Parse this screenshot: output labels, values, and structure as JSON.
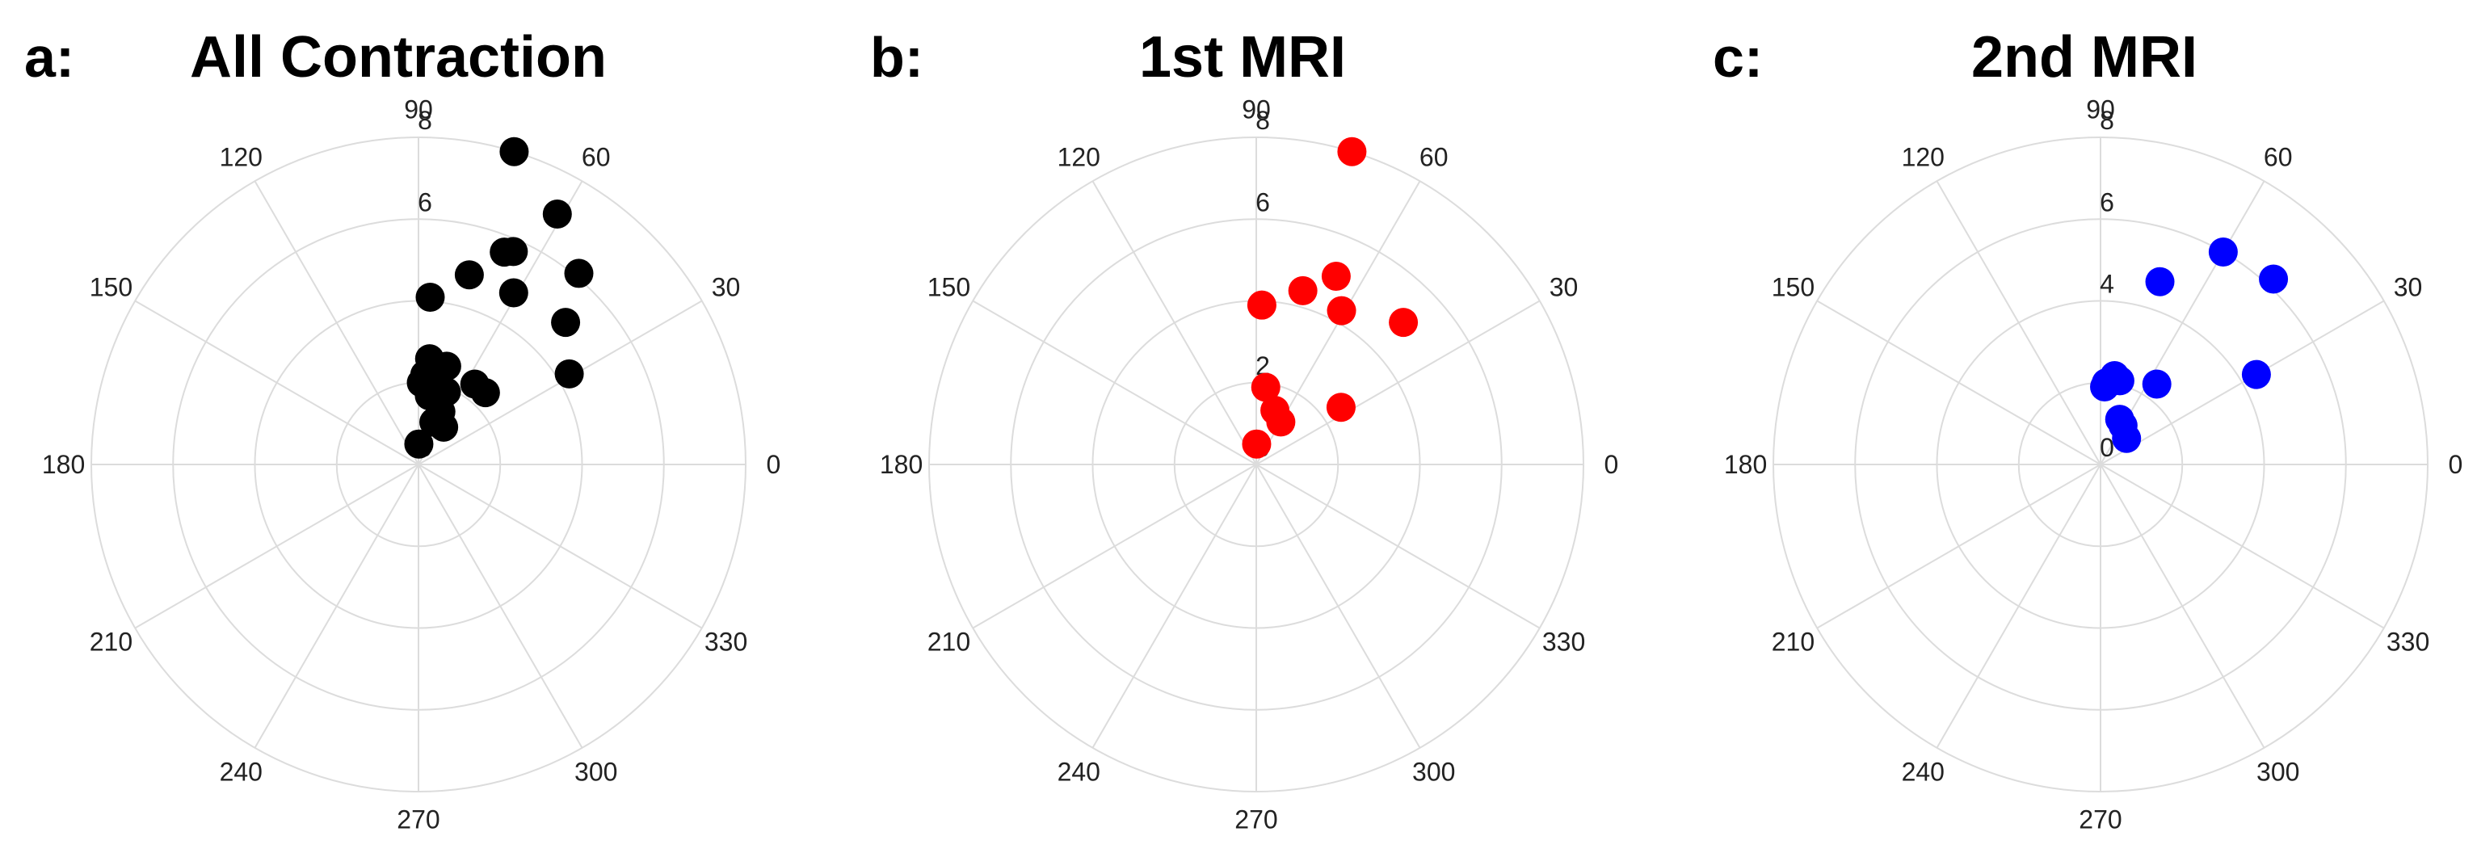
{
  "chart_data": [
    {
      "type": "scatter",
      "coordinate_system": "polar",
      "panel_letter": "a:",
      "title": "All Contraction",
      "marker_color": "#000000",
      "angle_unit": "degrees",
      "angle_ticks": [
        "0",
        "30",
        "60",
        "90",
        "120",
        "150",
        "180",
        "210",
        "240",
        "270",
        "300",
        "330"
      ],
      "radial_ticks": [
        "0",
        "6",
        "8"
      ],
      "rlim": [
        0,
        8
      ],
      "grid": true,
      "legend": "none",
      "points": [
        {
          "theta": 73,
          "r": 8.0
        },
        {
          "theta": 61,
          "r": 7.0
        },
        {
          "theta": 50,
          "r": 6.1
        },
        {
          "theta": 66,
          "r": 5.7
        },
        {
          "theta": 68,
          "r": 5.6
        },
        {
          "theta": 75,
          "r": 4.8
        },
        {
          "theta": 61,
          "r": 4.8
        },
        {
          "theta": 44,
          "r": 5.0
        },
        {
          "theta": 86,
          "r": 4.1
        },
        {
          "theta": 31,
          "r": 4.3
        },
        {
          "theta": 55,
          "r": 2.4
        },
        {
          "theta": 47,
          "r": 2.4
        },
        {
          "theta": 74,
          "r": 2.5
        },
        {
          "theta": 80,
          "r": 2.3
        },
        {
          "theta": 86,
          "r": 2.2
        },
        {
          "theta": 88,
          "r": 2.0
        },
        {
          "theta": 69,
          "r": 1.9
        },
        {
          "theta": 81,
          "r": 1.7
        },
        {
          "theta": 67,
          "r": 1.4
        },
        {
          "theta": 70,
          "r": 1.1
        },
        {
          "theta": 56,
          "r": 1.1
        },
        {
          "theta": 89,
          "r": 0.5
        },
        {
          "theta": 77,
          "r": 1.8
        },
        {
          "theta": 84,
          "r": 2.6
        }
      ]
    },
    {
      "type": "scatter",
      "coordinate_system": "polar",
      "panel_letter": "b:",
      "title": "1st MRI",
      "marker_color": "#ff0000",
      "angle_unit": "degrees",
      "angle_ticks": [
        "0",
        "30",
        "60",
        "90",
        "120",
        "150",
        "180",
        "210",
        "240",
        "270",
        "300",
        "330"
      ],
      "radial_ticks": [
        "0",
        "2",
        "6",
        "8"
      ],
      "rlim": [
        0,
        8
      ],
      "grid": true,
      "legend": "none",
      "points": [
        {
          "theta": 73,
          "r": 8.0
        },
        {
          "theta": 67,
          "r": 5.0
        },
        {
          "theta": 75,
          "r": 4.4
        },
        {
          "theta": 61,
          "r": 4.3
        },
        {
          "theta": 44,
          "r": 5.0
        },
        {
          "theta": 88,
          "r": 3.9
        },
        {
          "theta": 83,
          "r": 1.9
        },
        {
          "theta": 71,
          "r": 1.4
        },
        {
          "theta": 60,
          "r": 1.2
        },
        {
          "theta": 34,
          "r": 2.5
        },
        {
          "theta": 89,
          "r": 0.5
        }
      ]
    },
    {
      "type": "scatter",
      "coordinate_system": "polar",
      "panel_letter": "c:",
      "title": "2nd MRI",
      "marker_color": "#0000ff",
      "angle_unit": "degrees",
      "angle_ticks": [
        "0",
        "30",
        "60",
        "90",
        "120",
        "150",
        "180",
        "210",
        "240",
        "270",
        "300",
        "330"
      ],
      "radial_ticks": [
        "0",
        "4",
        "6",
        "8"
      ],
      "rlim": [
        0,
        8
      ],
      "grid": true,
      "legend": "none",
      "points": [
        {
          "theta": 60,
          "r": 6.0
        },
        {
          "theta": 47,
          "r": 6.2
        },
        {
          "theta": 72,
          "r": 4.7
        },
        {
          "theta": 30,
          "r": 4.4
        },
        {
          "theta": 55,
          "r": 2.4
        },
        {
          "theta": 81,
          "r": 2.2
        },
        {
          "theta": 86,
          "r": 2.0
        },
        {
          "theta": 87,
          "r": 1.9
        },
        {
          "theta": 77,
          "r": 2.1
        },
        {
          "theta": 60,
          "r": 1.1
        },
        {
          "theta": 67,
          "r": 1.2
        },
        {
          "theta": 45,
          "r": 0.9
        }
      ]
    }
  ]
}
